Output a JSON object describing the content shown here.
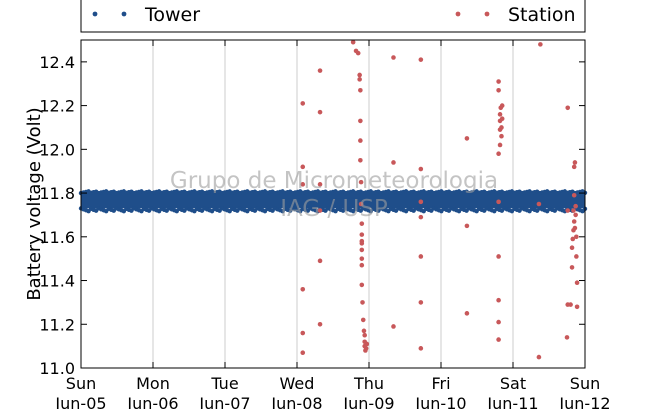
{
  "chart_data": {
    "type": "scatter",
    "ylabel": "Battery voltage (Volt)",
    "ylim": [
      11.0,
      12.5
    ],
    "yticks": [
      11.0,
      11.2,
      11.4,
      11.6,
      11.8,
      12.0,
      12.2,
      12.4
    ],
    "ytick_labels": [
      "11.0",
      "11.2",
      "11.4",
      "11.6",
      "11.8",
      "12.0",
      "12.2",
      "12.4"
    ],
    "xlim": [
      0,
      7
    ],
    "xticks": [
      {
        "day": "Sun",
        "date": "Jun-05"
      },
      {
        "day": "Mon",
        "date": "Jun-06"
      },
      {
        "day": "Tue",
        "date": "Jun-07"
      },
      {
        "day": "Wed",
        "date": "Jun-08"
      },
      {
        "day": "Thu",
        "date": "Jun-09"
      },
      {
        "day": "Fri",
        "date": "Jun-10"
      },
      {
        "day": "Sat",
        "date": "Jun-11"
      },
      {
        "day": "Sun",
        "date": "Jun-12"
      }
    ],
    "grid": "vertical",
    "legend_placement": "top, outside plot",
    "watermark": [
      "Grupo de Micrometeorologia",
      "IAG / USP"
    ],
    "series": [
      {
        "name": "Tower",
        "color": "#1f4e8a",
        "band": {
          "x": [
            0,
            7
          ],
          "y": [
            11.73,
            11.8
          ]
        }
      },
      {
        "name": "Station",
        "color": "#c8585a",
        "points": [
          [
            3.08,
            11.07
          ],
          [
            3.08,
            11.16
          ],
          [
            3.08,
            11.36
          ],
          [
            3.08,
            11.84
          ],
          [
            3.08,
            11.92
          ],
          [
            3.08,
            12.21
          ],
          [
            3.32,
            11.2
          ],
          [
            3.32,
            11.49
          ],
          [
            3.32,
            11.72
          ],
          [
            3.32,
            11.84
          ],
          [
            3.32,
            12.17
          ],
          [
            3.32,
            12.36
          ],
          [
            3.78,
            12.49
          ],
          [
            3.82,
            12.45
          ],
          [
            3.85,
            12.44
          ],
          [
            3.87,
            12.34
          ],
          [
            3.87,
            12.32
          ],
          [
            3.88,
            12.27
          ],
          [
            3.88,
            12.13
          ],
          [
            3.88,
            12.04
          ],
          [
            3.88,
            11.95
          ],
          [
            3.89,
            11.85
          ],
          [
            3.89,
            11.75
          ],
          [
            3.9,
            11.66
          ],
          [
            3.9,
            11.61
          ],
          [
            3.9,
            11.58
          ],
          [
            3.9,
            11.57
          ],
          [
            3.9,
            11.54
          ],
          [
            3.9,
            11.5
          ],
          [
            3.9,
            11.47
          ],
          [
            3.9,
            11.38
          ],
          [
            3.91,
            11.3
          ],
          [
            3.92,
            11.22
          ],
          [
            3.93,
            11.17
          ],
          [
            3.94,
            11.15
          ],
          [
            3.94,
            11.12
          ],
          [
            3.94,
            11.1
          ],
          [
            3.95,
            11.08
          ],
          [
            3.96,
            11.09
          ],
          [
            3.97,
            11.11
          ],
          [
            4.34,
            11.19
          ],
          [
            4.34,
            11.94
          ],
          [
            4.34,
            12.42
          ],
          [
            4.72,
            11.09
          ],
          [
            4.72,
            11.3
          ],
          [
            4.72,
            11.51
          ],
          [
            4.72,
            11.69
          ],
          [
            4.72,
            11.76
          ],
          [
            4.72,
            11.91
          ],
          [
            4.72,
            12.41
          ],
          [
            5.36,
            11.25
          ],
          [
            5.36,
            11.65
          ],
          [
            5.36,
            12.05
          ],
          [
            5.8,
            11.13
          ],
          [
            5.8,
            11.21
          ],
          [
            5.8,
            11.31
          ],
          [
            5.8,
            11.51
          ],
          [
            5.8,
            11.76
          ],
          [
            5.8,
            11.98
          ],
          [
            5.82,
            12.02
          ],
          [
            5.82,
            12.09
          ],
          [
            5.82,
            12.13
          ],
          [
            5.82,
            12.16
          ],
          [
            5.83,
            12.19
          ],
          [
            5.8,
            12.27
          ],
          [
            5.8,
            12.31
          ],
          [
            5.84,
            12.06
          ],
          [
            5.84,
            12.1
          ],
          [
            5.85,
            12.14
          ],
          [
            5.85,
            12.2
          ],
          [
            6.36,
            11.05
          ],
          [
            6.36,
            11.75
          ],
          [
            6.38,
            12.48
          ],
          [
            6.75,
            11.14
          ],
          [
            6.76,
            11.29
          ],
          [
            6.76,
            11.72
          ],
          [
            6.76,
            12.19
          ],
          [
            6.8,
            11.29
          ],
          [
            6.82,
            11.46
          ],
          [
            6.82,
            11.55
          ],
          [
            6.83,
            11.59
          ],
          [
            6.84,
            11.63
          ],
          [
            6.85,
            11.67
          ],
          [
            6.84,
            11.72
          ],
          [
            6.85,
            11.79
          ],
          [
            6.85,
            11.92
          ],
          [
            6.86,
            11.94
          ],
          [
            6.87,
            11.7
          ],
          [
            6.87,
            11.74
          ],
          [
            6.88,
            11.6
          ],
          [
            6.88,
            11.51
          ],
          [
            6.89,
            11.39
          ],
          [
            6.89,
            11.28
          ],
          [
            6.86,
            11.64
          ]
        ]
      }
    ]
  }
}
